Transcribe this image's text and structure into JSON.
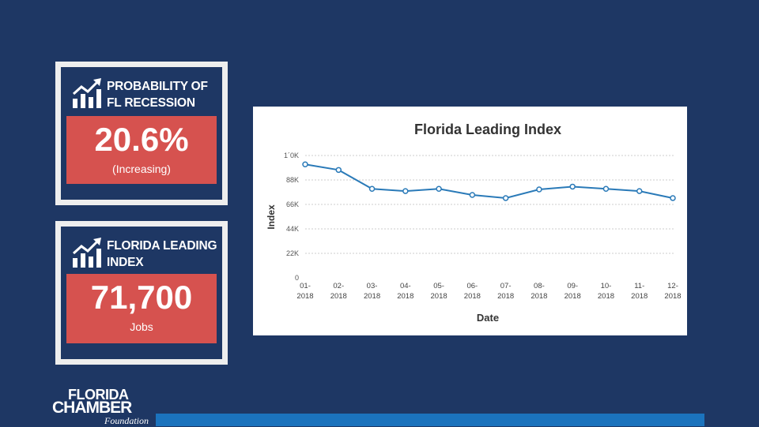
{
  "cards": [
    {
      "title_line1": "PROBABILITY OF",
      "title_line2": "FL RECESSION",
      "value": "20.6%",
      "sub": "(Increasing)",
      "icon": "growth-chart-icon"
    },
    {
      "title_line1": "FLORIDA LEADING",
      "title_line2": "INDEX",
      "value": "71,700",
      "sub": "Jobs",
      "icon": "growth-chart-icon"
    }
  ],
  "logo": {
    "line1": "FLORIDA",
    "line2": "CHAMBER",
    "line3": "Foundation"
  },
  "colors": {
    "background": "#1e3764",
    "card_border": "#eeeeee",
    "value_box": "#d6524f",
    "line": "#2a7ab8",
    "accent_bar": "#1b73bd"
  },
  "chart_data": {
    "type": "line",
    "title": "Florida Leading Index",
    "xlabel": "Date",
    "ylabel": "Index",
    "categories": [
      "01-2018",
      "02-2018",
      "03-2018",
      "04-2018",
      "05-2018",
      "06-2018",
      "07-2018",
      "08-2018",
      "09-2018",
      "10-2018",
      "11-2018",
      "12-2018"
    ],
    "yticks": [
      0,
      22000,
      44000,
      66000,
      88000,
      110000
    ],
    "ytick_labels": [
      "0",
      "22K",
      "44K",
      "66K",
      "88K",
      "1´0K"
    ],
    "ylim": [
      0,
      110000
    ],
    "grid": true,
    "series": [
      {
        "values": [
          102000,
          97000,
          80000,
          78000,
          80000,
          74500,
          71700,
          79500,
          82000,
          80000,
          78000,
          71700
        ]
      }
    ]
  }
}
